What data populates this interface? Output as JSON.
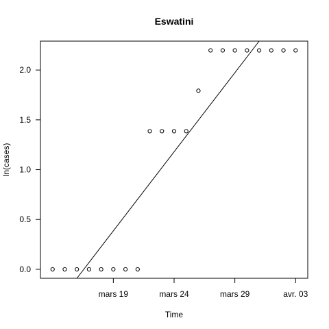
{
  "chart_data": {
    "type": "scatter",
    "title": "Eswatini",
    "xlabel": "Time",
    "ylabel": "ln(cases)",
    "x_dates": [
      "2020-03-14",
      "2020-03-15",
      "2020-03-16",
      "2020-03-17",
      "2020-03-18",
      "2020-03-19",
      "2020-03-20",
      "2020-03-21",
      "2020-03-22",
      "2020-03-23",
      "2020-03-24",
      "2020-03-25",
      "2020-03-26",
      "2020-03-27",
      "2020-03-28",
      "2020-03-29",
      "2020-03-30",
      "2020-03-31",
      "2020-04-01",
      "2020-04-02",
      "2020-04-03"
    ],
    "y": [
      0,
      0,
      0,
      0,
      0,
      0,
      0,
      0,
      1.386,
      1.386,
      1.386,
      1.386,
      1.792,
      2.197,
      2.197,
      2.197,
      2.197,
      2.197,
      2.197,
      2.197,
      2.197
    ],
    "x_ticks": [
      {
        "date": "2020-03-19",
        "label": "mars 19"
      },
      {
        "date": "2020-03-24",
        "label": "mars 24"
      },
      {
        "date": "2020-03-29",
        "label": "mars 29"
      },
      {
        "date": "2020-04-03",
        "label": "avr. 03"
      }
    ],
    "y_ticks": [
      {
        "value": 0.0,
        "label": "0.0"
      },
      {
        "value": 0.5,
        "label": "0.5"
      },
      {
        "value": 1.0,
        "label": "1.0"
      },
      {
        "value": 1.5,
        "label": "1.5"
      },
      {
        "value": 2.0,
        "label": "2.0"
      }
    ],
    "xlim": [
      "2020-03-13",
      "2020-04-04"
    ],
    "ylim": [
      -0.09,
      2.29
    ],
    "fit_line": {
      "start": [
        "2020-03-16",
        -0.09
      ],
      "end": [
        "2020-03-31",
        2.29
      ]
    },
    "grid": false,
    "legend": "none"
  }
}
